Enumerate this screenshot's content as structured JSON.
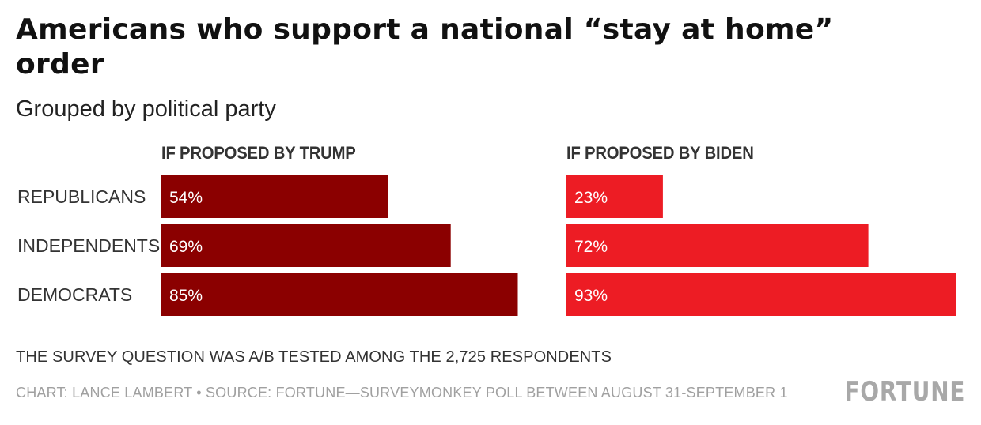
{
  "title": "Americans who support a national “stay at home” order",
  "subtitle": "Grouped by political party",
  "colors": {
    "trump": "#8b0000",
    "biden": "#ed1c24"
  },
  "chart_data": {
    "type": "bar",
    "orientation": "horizontal",
    "unit": "%",
    "xlim": [
      0,
      100
    ],
    "categories": [
      "REPUBLICANS",
      "INDEPENDENTS",
      "DEMOCRATS"
    ],
    "series": [
      {
        "name": "IF PROPOSED BY TRUMP",
        "values": [
          54,
          69,
          85
        ],
        "labels": [
          "54%",
          "69%",
          "85%"
        ]
      },
      {
        "name": "IF PROPOSED BY BIDEN",
        "values": [
          23,
          72,
          93
        ],
        "labels": [
          "23%",
          "72%",
          "93%"
        ]
      }
    ]
  },
  "footer": {
    "note": "THE SURVEY QUESTION WAS A/B TESTED AMONG THE 2,725 RESPONDENTS",
    "credit": "CHART: LANCE LAMBERT • SOURCE: FORTUNE—SURVEYMONKEY POLL BETWEEN AUGUST 31-SEPTEMBER 1",
    "logo": "FORTUNE"
  }
}
